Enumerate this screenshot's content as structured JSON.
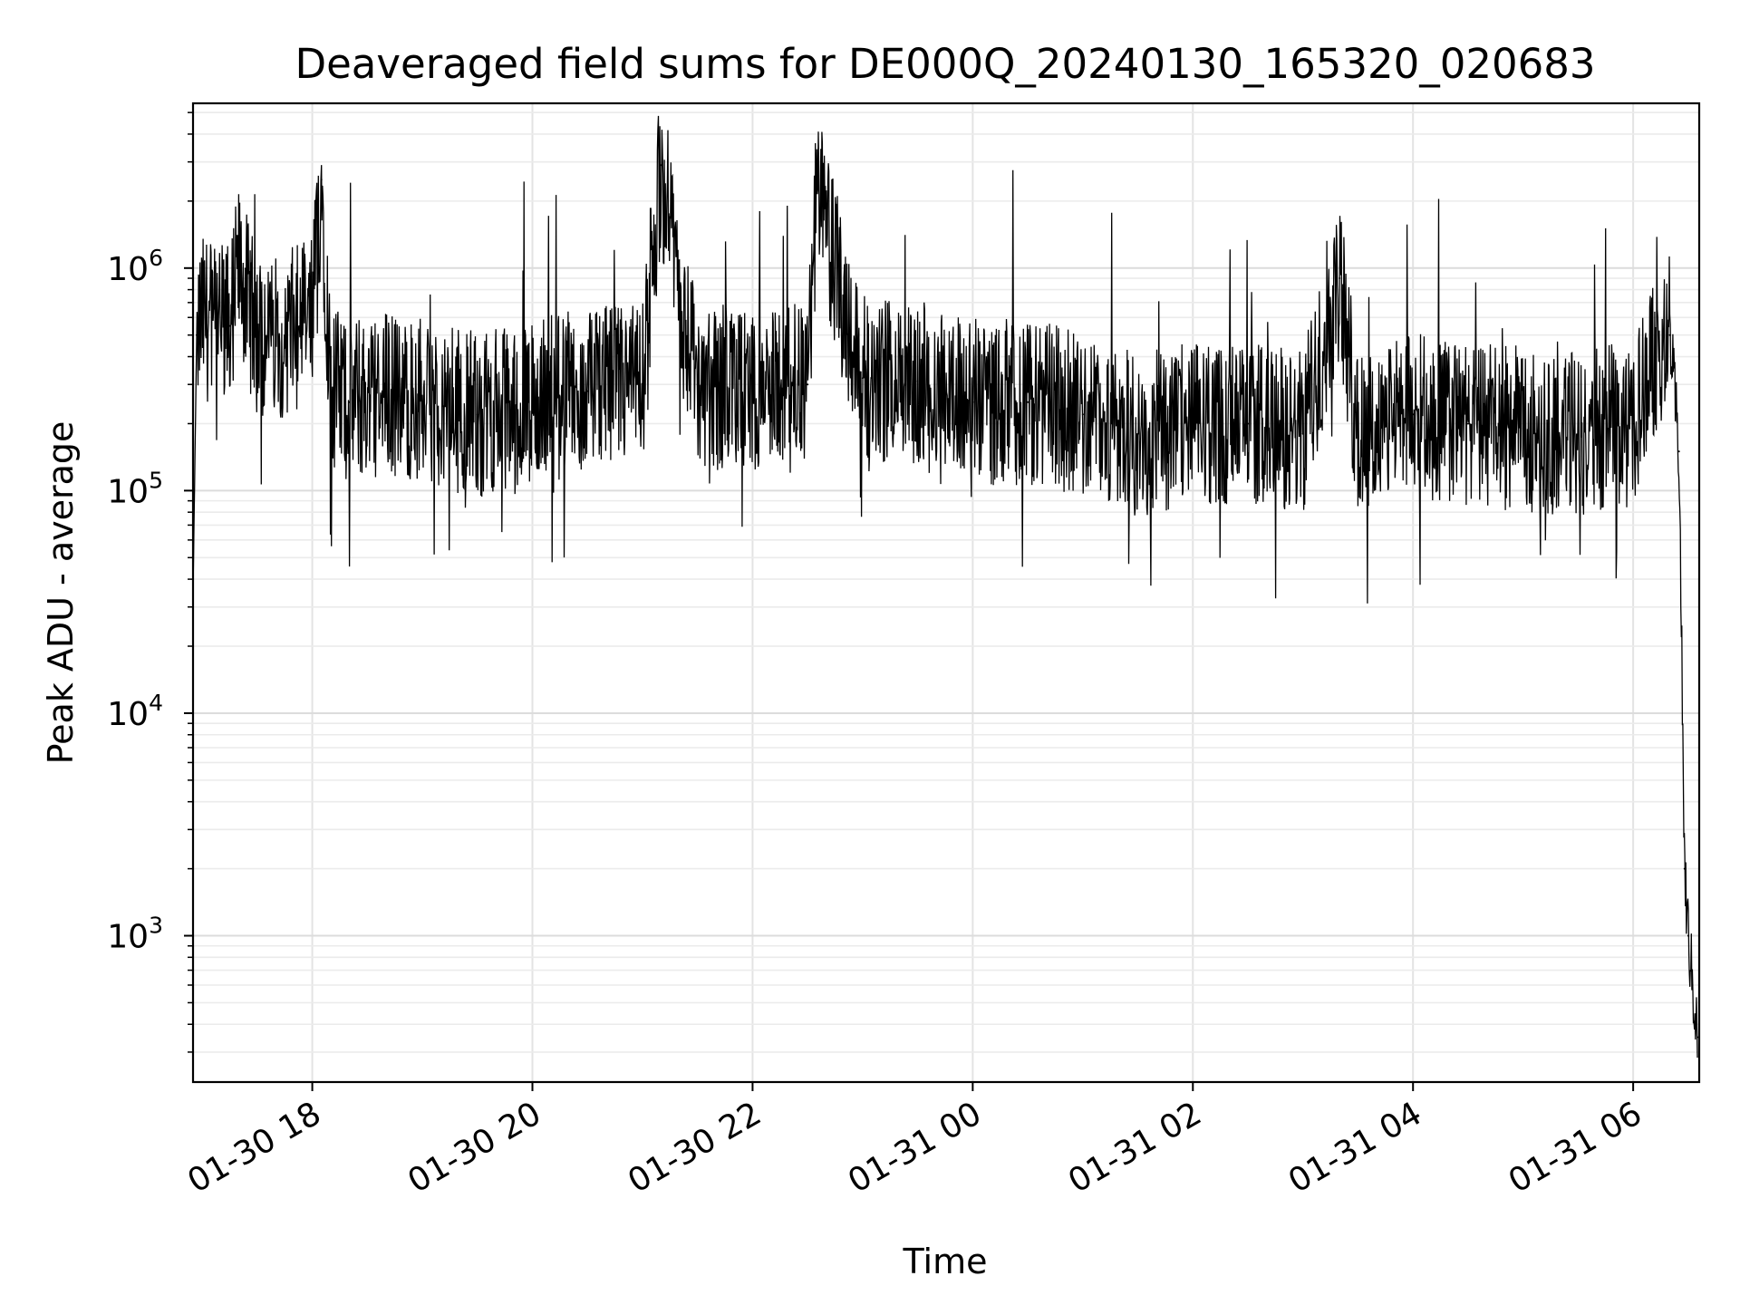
{
  "chart_data": {
    "type": "line",
    "title": "Deaveraged field sums for DE000Q_20240130_165320_020683",
    "xlabel": "Time",
    "ylabel": "Peak ADU - average",
    "y_scale": "log",
    "ylim": [
      220,
      5500000
    ],
    "xlim": [
      "2024-01-30 16:55",
      "2024-01-31 06:36"
    ],
    "grid": "major and minor, light gray",
    "legend": "none",
    "line_color": "#000000",
    "x_ticks": [
      {
        "at": "2024-01-30 18:00",
        "label": "01-30 18"
      },
      {
        "at": "2024-01-30 20:00",
        "label": "01-30 20"
      },
      {
        "at": "2024-01-30 22:00",
        "label": "01-30 22"
      },
      {
        "at": "2024-01-31 00:00",
        "label": "01-31 00"
      },
      {
        "at": "2024-01-31 02:00",
        "label": "01-31 02"
      },
      {
        "at": "2024-01-31 04:00",
        "label": "01-31 04"
      },
      {
        "at": "2024-01-31 06:00",
        "label": "01-31 06"
      }
    ],
    "y_ticks": [
      {
        "value": 1000,
        "base": "10",
        "exp": "3"
      },
      {
        "value": 10000,
        "base": "10",
        "exp": "4"
      },
      {
        "value": 100000,
        "base": "10",
        "exp": "5"
      },
      {
        "value": 1000000,
        "base": "10",
        "exp": "6"
      }
    ],
    "series": [
      {
        "x": [
          "2024-01-30 16:55",
          "2024-01-30 16:57",
          "2024-01-30 17:00",
          "2024-01-30 17:15",
          "2024-01-30 17:20",
          "2024-01-30 17:30",
          "2024-01-30 17:45",
          "2024-01-30 18:00",
          "2024-01-30 18:05",
          "2024-01-30 18:10",
          "2024-01-30 18:20",
          "2024-01-30 18:40",
          "2024-01-30 19:00",
          "2024-01-30 19:30",
          "2024-01-30 20:00",
          "2024-01-30 20:30",
          "2024-01-30 21:00",
          "2024-01-30 21:10",
          "2024-01-30 21:30",
          "2024-01-30 22:00",
          "2024-01-30 22:30",
          "2024-01-30 22:35",
          "2024-01-30 23:00",
          "2024-01-30 23:30",
          "2024-01-31 00:00",
          "2024-01-31 00:30",
          "2024-01-31 01:00",
          "2024-01-31 01:30",
          "2024-01-31 02:00",
          "2024-01-31 02:30",
          "2024-01-31 03:00",
          "2024-01-31 03:20",
          "2024-01-31 03:30",
          "2024-01-31 04:00",
          "2024-01-31 04:30",
          "2024-01-31 05:00",
          "2024-01-31 05:30",
          "2024-01-31 06:00",
          "2024-01-31 06:10",
          "2024-01-31 06:20",
          "2024-01-31 06:25",
          "2024-01-31 06:28",
          "2024-01-31 06:30",
          "2024-01-31 06:35"
        ],
        "values": [
          35000,
          500000,
          600000,
          550000,
          1000000,
          500000,
          500000,
          600000,
          2500000,
          300000,
          250000,
          280000,
          250000,
          220000,
          250000,
          280000,
          300000,
          2900000,
          300000,
          280000,
          300000,
          2200000,
          320000,
          310000,
          250000,
          250000,
          220000,
          180000,
          200000,
          200000,
          180000,
          900000,
          170000,
          220000,
          200000,
          190000,
          180000,
          200000,
          400000,
          500000,
          150000,
          2000,
          1000,
          350
        ]
      }
    ]
  }
}
